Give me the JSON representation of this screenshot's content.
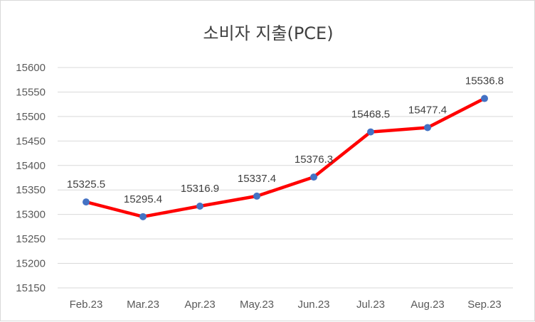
{
  "chart_data": {
    "type": "line",
    "title": "소비자 지출(PCE)",
    "xlabel": "",
    "ylabel": "",
    "categories": [
      "Feb.23",
      "Mar.23",
      "Apr.23",
      "May.23",
      "Jun.23",
      "Jul.23",
      "Aug.23",
      "Sep.23"
    ],
    "series": [
      {
        "values": [
          15325.5,
          15295.4,
          15316.9,
          15337.4,
          15376.3,
          15468.5,
          15477.4,
          15536.8
        ],
        "data_labels": [
          "15325.5",
          "15295.4",
          "15316.9",
          "15337.4",
          "15376.3",
          "15468.5",
          "15477.4",
          "15536.8"
        ],
        "line_color": "#ff0000",
        "marker_color": "#4472c4"
      }
    ],
    "ylim": [
      15150,
      15600
    ],
    "yticks": [
      15150,
      15200,
      15250,
      15300,
      15350,
      15400,
      15450,
      15500,
      15550,
      15600
    ],
    "grid": true,
    "gridline_color": "#d9d9d9",
    "legend": "none"
  }
}
